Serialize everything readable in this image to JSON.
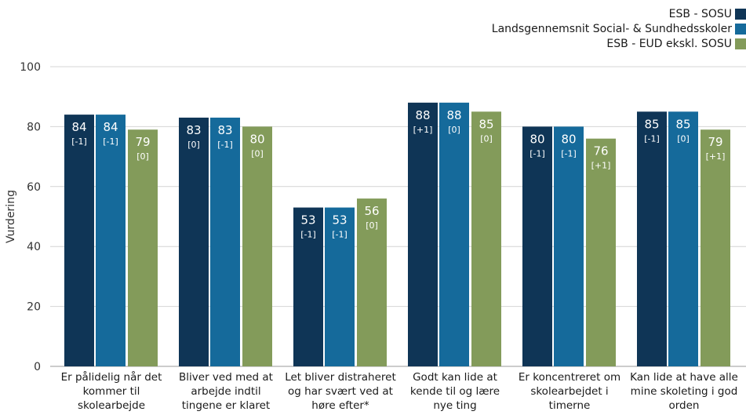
{
  "chart_data": {
    "type": "bar",
    "ylabel": "Vurdering",
    "ylim": [
      0,
      100
    ],
    "yticks": [
      0,
      20,
      40,
      60,
      80,
      100
    ],
    "legend_position": "top-right",
    "categories": [
      [
        "Er pålidelig når det",
        "kommer til",
        "skolearbejde"
      ],
      [
        "Bliver ved med at",
        "arbejde indtil",
        "tingene er klaret"
      ],
      [
        "Let bliver distraheret",
        "og har svært ved at",
        "høre efter*"
      ],
      [
        "Godt kan lide at",
        "kende til og lære",
        "nye ting"
      ],
      [
        "Er koncentreret om",
        "skolearbejdet i",
        "timerne"
      ],
      [
        "Kan lide at have alle",
        "mine skoleting i god",
        "orden"
      ]
    ],
    "series": [
      {
        "name": "ESB - SOSU",
        "color": "#0f3556",
        "values": [
          84,
          83,
          53,
          88,
          80,
          85
        ],
        "labels": [
          "84",
          "83",
          "53",
          "88",
          "80",
          "85"
        ],
        "changes": [
          "[-1]",
          "[0]",
          "[-1]",
          "[+1]",
          "[-1]",
          "[-1]"
        ]
      },
      {
        "name": "Landsgennemsnit Social- & Sundhedsskoler",
        "color": "#156a9b",
        "values": [
          84,
          83,
          53,
          88,
          80,
          85
        ],
        "labels": [
          "84",
          "83",
          "53",
          "88",
          "80",
          "85"
        ],
        "changes": [
          "[-1]",
          "[-1]",
          "[-1]",
          "[0]",
          "[-1]",
          "[0]"
        ]
      },
      {
        "name": "ESB - EUD ekskl. SOSU",
        "color": "#839b5a",
        "values": [
          79,
          80,
          56,
          85,
          76,
          79
        ],
        "labels": [
          "79",
          "80",
          "56",
          "85",
          "76",
          "79"
        ],
        "changes": [
          "[0]",
          "[0]",
          "[0]",
          "[0]",
          "[+1]",
          "[+1]"
        ]
      }
    ]
  }
}
